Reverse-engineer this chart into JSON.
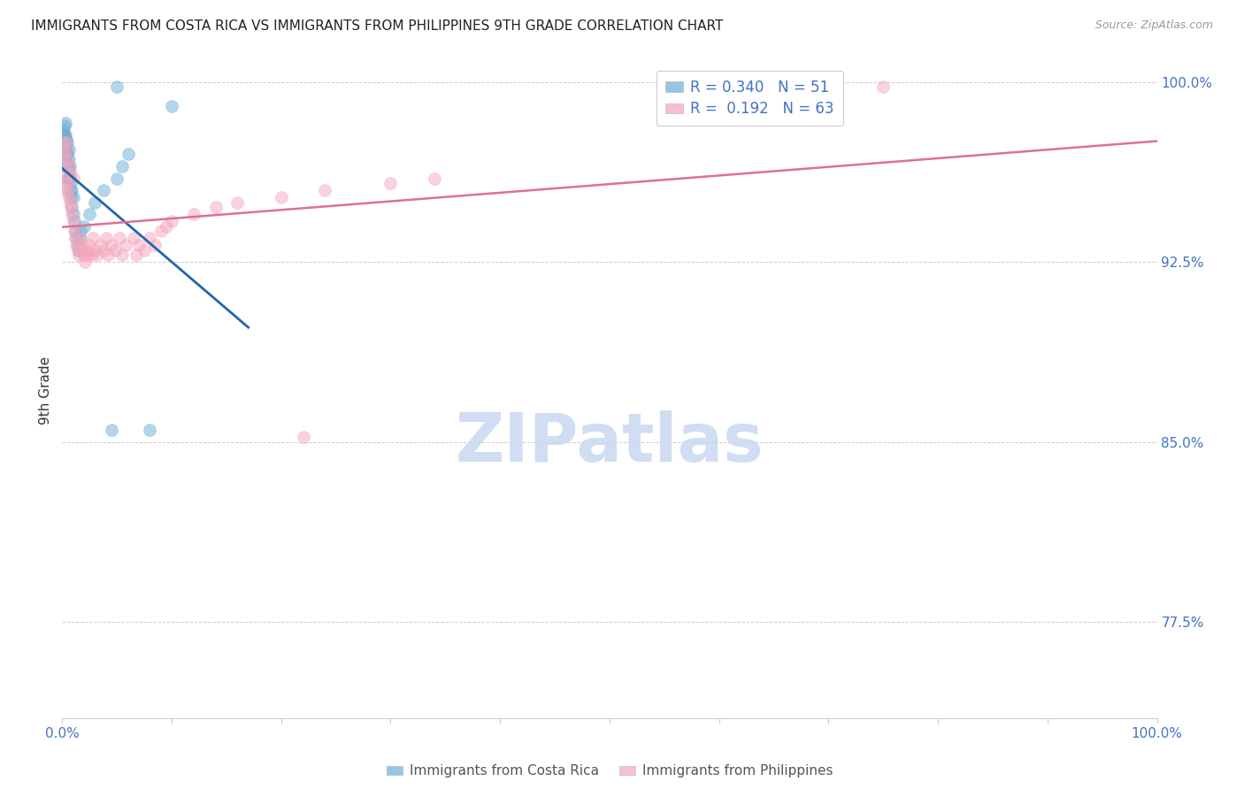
{
  "title": "IMMIGRANTS FROM COSTA RICA VS IMMIGRANTS FROM PHILIPPINES 9TH GRADE CORRELATION CHART",
  "source_text": "Source: ZipAtlas.com",
  "ylabel_label": "9th Grade",
  "legend_entries": [
    {
      "label": "R = 0.340   N = 51",
      "color": "#6baed6"
    },
    {
      "label": "R =  0.192   N = 63",
      "color": "#fa9fb5"
    }
  ],
  "bottom_legend": [
    {
      "label": "Immigrants from Costa Rica",
      "color": "#6baed6"
    },
    {
      "label": "Immigrants from Philippines",
      "color": "#fa9fb5"
    }
  ],
  "title_fontsize": 11,
  "source_fontsize": 9,
  "axis_color": "#4472c4",
  "scatter_alpha": 0.5,
  "scatter_size": 100,
  "blue_scatter_color": "#6baed6",
  "pink_scatter_color": "#f4a6bc",
  "blue_line_color": "#2166ac",
  "pink_line_color": "#e07090",
  "watermark_text": "ZIPatlas",
  "watermark_color": "#c8d8f0",
  "grid_color": "#cccccc",
  "xlim": [
    0.0,
    1.0
  ],
  "ylim": [
    0.735,
    1.008
  ],
  "blue_x": [
    0.001,
    0.001,
    0.001,
    0.002,
    0.002,
    0.002,
    0.002,
    0.003,
    0.003,
    0.003,
    0.003,
    0.003,
    0.004,
    0.004,
    0.004,
    0.004,
    0.005,
    0.005,
    0.005,
    0.005,
    0.006,
    0.006,
    0.006,
    0.006,
    0.007,
    0.007,
    0.007,
    0.008,
    0.008,
    0.009,
    0.009,
    0.01,
    0.01,
    0.011,
    0.012,
    0.013,
    0.014,
    0.015,
    0.016,
    0.017,
    0.02,
    0.025,
    0.03,
    0.038,
    0.045,
    0.05,
    0.055,
    0.06,
    0.08,
    0.05,
    0.1
  ],
  "blue_y": [
    0.975,
    0.978,
    0.98,
    0.972,
    0.975,
    0.978,
    0.982,
    0.968,
    0.972,
    0.975,
    0.978,
    0.983,
    0.965,
    0.97,
    0.972,
    0.976,
    0.96,
    0.965,
    0.97,
    0.975,
    0.96,
    0.963,
    0.968,
    0.972,
    0.955,
    0.96,
    0.965,
    0.952,
    0.958,
    0.948,
    0.955,
    0.945,
    0.952,
    0.942,
    0.938,
    0.935,
    0.932,
    0.93,
    0.935,
    0.938,
    0.94,
    0.945,
    0.95,
    0.955,
    0.855,
    0.96,
    0.965,
    0.97,
    0.855,
    0.998,
    0.99
  ],
  "pink_x": [
    0.001,
    0.001,
    0.002,
    0.002,
    0.003,
    0.003,
    0.004,
    0.004,
    0.005,
    0.005,
    0.006,
    0.006,
    0.007,
    0.008,
    0.008,
    0.009,
    0.01,
    0.01,
    0.011,
    0.012,
    0.013,
    0.014,
    0.015,
    0.016,
    0.017,
    0.018,
    0.019,
    0.02,
    0.021,
    0.022,
    0.023,
    0.025,
    0.027,
    0.028,
    0.03,
    0.032,
    0.035,
    0.038,
    0.04,
    0.042,
    0.045,
    0.048,
    0.052,
    0.055,
    0.058,
    0.065,
    0.068,
    0.07,
    0.075,
    0.08,
    0.085,
    0.09,
    0.095,
    0.1,
    0.12,
    0.14,
    0.16,
    0.2,
    0.24,
    0.3,
    0.34,
    0.22,
    0.75
  ],
  "pink_y": [
    0.965,
    0.97,
    0.96,
    0.975,
    0.955,
    0.975,
    0.958,
    0.972,
    0.955,
    0.968,
    0.952,
    0.965,
    0.95,
    0.948,
    0.962,
    0.945,
    0.942,
    0.96,
    0.938,
    0.935,
    0.932,
    0.93,
    0.928,
    0.93,
    0.935,
    0.932,
    0.93,
    0.928,
    0.925,
    0.93,
    0.928,
    0.932,
    0.928,
    0.935,
    0.93,
    0.928,
    0.932,
    0.93,
    0.935,
    0.928,
    0.932,
    0.93,
    0.935,
    0.928,
    0.932,
    0.935,
    0.928,
    0.932,
    0.93,
    0.935,
    0.932,
    0.938,
    0.94,
    0.942,
    0.945,
    0.948,
    0.95,
    0.952,
    0.955,
    0.958,
    0.96,
    0.852,
    0.998
  ]
}
